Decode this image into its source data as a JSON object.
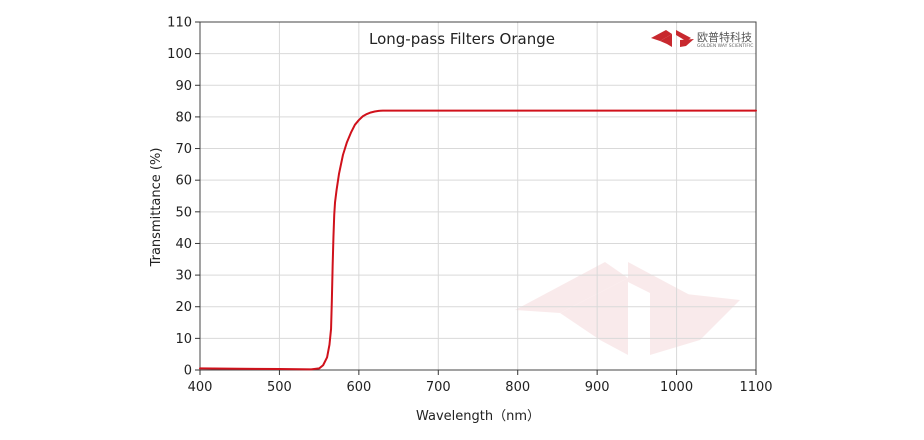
{
  "chart_data": {
    "type": "line",
    "title": "Long-pass Filters Orange",
    "xlabel": "Wavelength（nm）",
    "ylabel": "Transmittance (%)",
    "xlim": [
      400,
      1100
    ],
    "ylim": [
      0,
      110
    ],
    "xticks": [
      400,
      500,
      600,
      700,
      800,
      900,
      1000,
      1100
    ],
    "yticks": [
      0,
      10,
      20,
      30,
      40,
      50,
      60,
      70,
      80,
      90,
      100,
      110
    ],
    "grid": true,
    "series": [
      {
        "color": "#d0111b",
        "x": [
          400,
          450,
          500,
          540,
          550,
          555,
          560,
          563,
          565,
          566,
          567,
          568,
          569,
          570,
          572,
          575,
          580,
          585,
          590,
          595,
          600,
          605,
          610,
          615,
          620,
          625,
          630,
          650,
          700,
          800,
          900,
          1000,
          1100
        ],
        "y": [
          0.5,
          0.4,
          0.3,
          0.2,
          0.5,
          1.5,
          4,
          8,
          13,
          22,
          33,
          42,
          49,
          53,
          57,
          62,
          68,
          72,
          75,
          77.5,
          79,
          80.2,
          80.9,
          81.4,
          81.7,
          81.9,
          82,
          82,
          82,
          82,
          82,
          82,
          82
        ]
      }
    ]
  },
  "logo": {
    "cn_text": "欧普特科技",
    "en_text": "GOLDEN WAY SCIENTIFIC",
    "color": "#c8282e"
  }
}
